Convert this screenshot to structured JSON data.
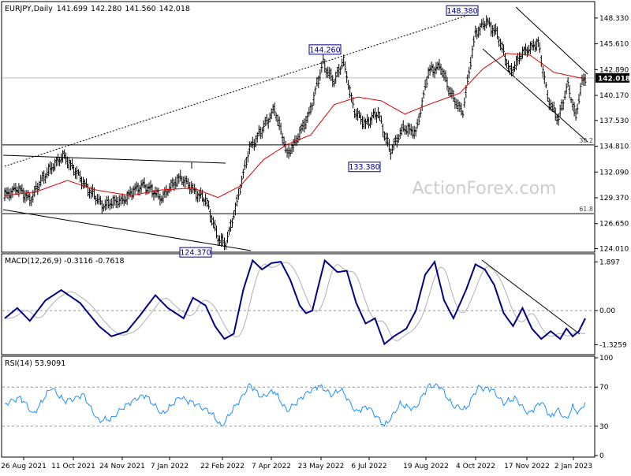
{
  "chart_data": [
    {
      "type": "candlestick",
      "title": "EURJPY,Daily",
      "ohlc": {
        "open": "141.699",
        "high": "142.280",
        "low": "141.560",
        "close": "142.018"
      },
      "last_price_label": "142.018",
      "ylim": [
        123.8,
        149.9
      ],
      "y_ticks": [
        "148.330",
        "145.610",
        "142.890",
        "140.170",
        "137.530",
        "134.810",
        "132.090",
        "129.370",
        "126.650",
        "124.010"
      ],
      "x_ticks": [
        "26 Aug 2021",
        "11 Oct 2021",
        "24 Nov 2021",
        "7 Jan 2022",
        "22 Feb 2022",
        "7 Apr 2022",
        "23 May 2022",
        "6 Jul 2022",
        "19 Aug 2022",
        "4 Oct 2022",
        "17 Nov 2022",
        "2 Jan 2023"
      ],
      "annotations": [
        {
          "text": "148.380",
          "value": 148.38
        },
        {
          "text": "144.260",
          "value": 144.26
        },
        {
          "text": "133.380",
          "value": 133.38
        },
        {
          "text": "124.370",
          "value": 124.37
        }
      ],
      "fib_levels": [
        {
          "label": "38.2",
          "value": 134.95
        },
        {
          "label": "61.8",
          "value": 127.7
        }
      ],
      "watermark": "ActionForex.com",
      "price_anchors": [
        [
          0,
          129.6
        ],
        [
          8,
          130.4
        ],
        [
          16,
          129.2
        ],
        [
          28,
          132.3
        ],
        [
          38,
          133.8
        ],
        [
          50,
          131.0
        ],
        [
          62,
          128.6
        ],
        [
          75,
          129.1
        ],
        [
          88,
          130.8
        ],
        [
          100,
          129.4
        ],
        [
          112,
          131.6
        ],
        [
          120,
          130.2
        ],
        [
          128,
          129.2
        ],
        [
          136,
          125.2
        ],
        [
          141,
          124.4
        ],
        [
          147,
          128.3
        ],
        [
          156,
          134.6
        ],
        [
          164,
          136.5
        ],
        [
          172,
          138.8
        ],
        [
          180,
          134.0
        ],
        [
          186,
          135.4
        ],
        [
          194,
          138.2
        ],
        [
          203,
          143.6
        ],
        [
          210,
          141.6
        ],
        [
          216,
          143.8
        ],
        [
          223,
          138.4
        ],
        [
          230,
          137.2
        ],
        [
          238,
          138.3
        ],
        [
          246,
          134.2
        ],
        [
          254,
          136.8
        ],
        [
          262,
          136.2
        ],
        [
          270,
          142.6
        ],
        [
          278,
          143.3
        ],
        [
          284,
          140.4
        ],
        [
          292,
          138.4
        ],
        [
          300,
          146.8
        ],
        [
          307,
          147.9
        ],
        [
          314,
          146.7
        ],
        [
          322,
          142.6
        ],
        [
          330,
          144.6
        ],
        [
          340,
          145.8
        ],
        [
          346,
          140.0
        ],
        [
          353,
          137.6
        ],
        [
          359,
          141.4
        ],
        [
          364,
          137.9
        ],
        [
          368,
          141.6
        ],
        [
          370,
          142.0
        ]
      ],
      "ma_anchors": [
        [
          0,
          129.6
        ],
        [
          20,
          130.0
        ],
        [
          40,
          131.2
        ],
        [
          58,
          130.2
        ],
        [
          80,
          129.6
        ],
        [
          100,
          130.2
        ],
        [
          120,
          130.4
        ],
        [
          136,
          129.4
        ],
        [
          150,
          130.6
        ],
        [
          165,
          133.4
        ],
        [
          180,
          135.0
        ],
        [
          195,
          136.0
        ],
        [
          210,
          139.2
        ],
        [
          225,
          140.0
        ],
        [
          240,
          139.6
        ],
        [
          255,
          138.2
        ],
        [
          270,
          139.2
        ],
        [
          290,
          140.4
        ],
        [
          305,
          143.0
        ],
        [
          320,
          144.6
        ],
        [
          335,
          144.4
        ],
        [
          350,
          142.6
        ],
        [
          370,
          141.9
        ]
      ]
    },
    {
      "type": "line",
      "title": "MACD(12,26,9) -0.3116 -0.7618",
      "ylim": [
        -1.65,
        2.15
      ],
      "y_ticks": [
        "1.897",
        "0.00",
        "-1.3259"
      ],
      "series": [
        {
          "name": "MACD",
          "anchors": [
            [
              0,
              -0.3
            ],
            [
              8,
              0.1
            ],
            [
              16,
              -0.4
            ],
            [
              26,
              0.4
            ],
            [
              36,
              0.8
            ],
            [
              48,
              0.3
            ],
            [
              60,
              -0.6
            ],
            [
              68,
              -1.0
            ],
            [
              78,
              -0.8
            ],
            [
              86,
              -0.2
            ],
            [
              96,
              0.6
            ],
            [
              104,
              0.1
            ],
            [
              114,
              -0.3
            ],
            [
              120,
              0.5
            ],
            [
              128,
              0.2
            ],
            [
              134,
              -0.6
            ],
            [
              140,
              -1.1
            ],
            [
              146,
              -0.9
            ],
            [
              152,
              0.8
            ],
            [
              158,
              1.95
            ],
            [
              164,
              1.6
            ],
            [
              170,
              1.85
            ],
            [
              176,
              1.9
            ],
            [
              182,
              1.2
            ],
            [
              188,
              0.2
            ],
            [
              192,
              -0.1
            ],
            [
              196,
              0.0
            ],
            [
              204,
              1.95
            ],
            [
              212,
              1.5
            ],
            [
              218,
              1.55
            ],
            [
              224,
              0.3
            ],
            [
              230,
              -0.5
            ],
            [
              236,
              -0.3
            ],
            [
              242,
              -1.3
            ],
            [
              248,
              -1.0
            ],
            [
              256,
              -0.7
            ],
            [
              262,
              0.0
            ],
            [
              268,
              1.4
            ],
            [
              274,
              1.9
            ],
            [
              280,
              0.4
            ],
            [
              286,
              -0.3
            ],
            [
              294,
              0.8
            ],
            [
              300,
              1.8
            ],
            [
              306,
              1.6
            ],
            [
              312,
              1.0
            ],
            [
              318,
              -0.1
            ],
            [
              324,
              -0.6
            ],
            [
              330,
              0.1
            ],
            [
              336,
              -0.7
            ],
            [
              342,
              -1.1
            ],
            [
              348,
              -0.8
            ],
            [
              354,
              -1.1
            ],
            [
              358,
              -0.7
            ],
            [
              362,
              -1.0
            ],
            [
              366,
              -0.8
            ],
            [
              370,
              -0.3
            ]
          ]
        },
        {
          "name": "Signal",
          "lag": 3
        }
      ]
    },
    {
      "type": "line",
      "title": "RSI(14) 53.9091",
      "ylim": [
        0,
        100
      ],
      "y_ticks": [
        "100",
        "70",
        "30",
        "0"
      ],
      "series": [
        {
          "name": "RSI",
          "anchors": [
            [
              0,
              52
            ],
            [
              10,
              60
            ],
            [
              18,
              42
            ],
            [
              30,
              70
            ],
            [
              38,
              55
            ],
            [
              50,
              62
            ],
            [
              60,
              35
            ],
            [
              68,
              38
            ],
            [
              80,
              55
            ],
            [
              90,
              62
            ],
            [
              100,
              42
            ],
            [
              112,
              60
            ],
            [
              122,
              52
            ],
            [
              130,
              46
            ],
            [
              138,
              30
            ],
            [
              146,
              48
            ],
            [
              156,
              72
            ],
            [
              164,
              60
            ],
            [
              172,
              66
            ],
            [
              180,
              45
            ],
            [
              188,
              58
            ],
            [
              200,
              72
            ],
            [
              208,
              62
            ],
            [
              214,
              68
            ],
            [
              224,
              45
            ],
            [
              232,
              50
            ],
            [
              242,
              30
            ],
            [
              252,
              52
            ],
            [
              262,
              48
            ],
            [
              270,
              72
            ],
            [
              278,
              70
            ],
            [
              286,
              50
            ],
            [
              294,
              48
            ],
            [
              302,
              70
            ],
            [
              310,
              68
            ],
            [
              318,
              54
            ],
            [
              326,
              58
            ],
            [
              334,
              42
            ],
            [
              342,
              56
            ],
            [
              348,
              38
            ],
            [
              352,
              48
            ],
            [
              358,
              36
            ],
            [
              362,
              50
            ],
            [
              366,
              44
            ],
            [
              370,
              54
            ]
          ]
        }
      ]
    }
  ]
}
